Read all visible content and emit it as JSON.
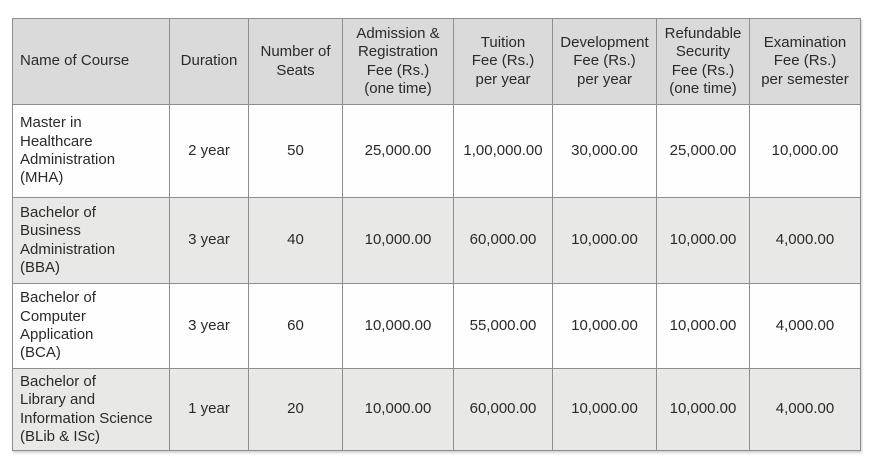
{
  "colors": {
    "header_bg": "#dadada",
    "shaded_row_bg": "#e8e8e7",
    "plain_row_bg": "#fefefe",
    "grid_border": "#8d8d8d",
    "text": "#2a2a2a"
  },
  "table": {
    "columns": [
      {
        "label": "Name of Course"
      },
      {
        "label": "Duration"
      },
      {
        "label": "Number of\nSeats"
      },
      {
        "label": "Admission &\nRegistration\nFee (Rs.)\n(one time)"
      },
      {
        "label": "Tuition\nFee (Rs.)\nper year"
      },
      {
        "label": "Development\nFee (Rs.)\nper year"
      },
      {
        "label": "Refundable\nSecurity\nFee (Rs.)\n(one time)"
      },
      {
        "label": "Examination\nFee (Rs.)\nper semester"
      }
    ],
    "rows": [
      {
        "name": "Master in\nHealthcare\nAdministration\n(MHA)",
        "duration": "2 year",
        "seats": "50",
        "admission_fee": "25,000.00",
        "tuition_fee": "1,00,000.00",
        "development_fee": "30,000.00",
        "security_fee": "25,000.00",
        "examination_fee": "10,000.00"
      },
      {
        "name": "Bachelor of\nBusiness\nAdministration\n(BBA)",
        "duration": "3 year",
        "seats": "40",
        "admission_fee": "10,000.00",
        "tuition_fee": "60,000.00",
        "development_fee": "10,000.00",
        "security_fee": "10,000.00",
        "examination_fee": "4,000.00"
      },
      {
        "name": "Bachelor of\nComputer\nApplication\n(BCA)",
        "duration": "3 year",
        "seats": "60",
        "admission_fee": "10,000.00",
        "tuition_fee": "55,000.00",
        "development_fee": "10,000.00",
        "security_fee": "10,000.00",
        "examination_fee": "4,000.00"
      },
      {
        "name": "Bachelor of\nLibrary and\nInformation Science\n(BLib & ISc)",
        "duration": "1 year",
        "seats": "20",
        "admission_fee": "10,000.00",
        "tuition_fee": "60,000.00",
        "development_fee": "10,000.00",
        "security_fee": "10,000.00",
        "examination_fee": "4,000.00"
      }
    ]
  }
}
